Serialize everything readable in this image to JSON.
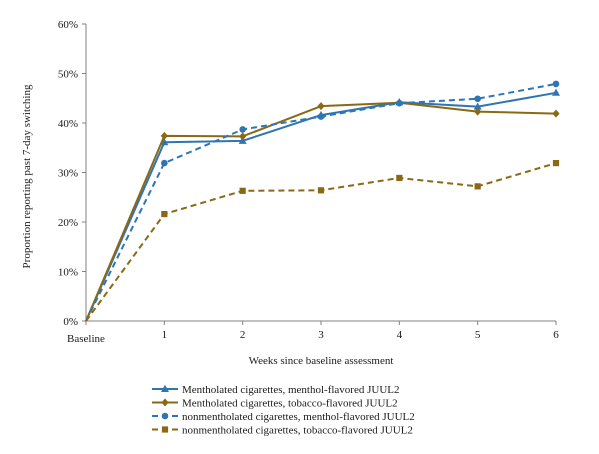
{
  "chart_data": {
    "type": "line",
    "title": "",
    "xlabel": "Weeks since baseline assessment",
    "ylabel": "Proportion reporting past 7-day switching",
    "categories": [
      "Baseline",
      "1",
      "2",
      "3",
      "4",
      "5",
      "6"
    ],
    "ylim": [
      0,
      60
    ],
    "yticks": [
      0,
      10,
      20,
      30,
      40,
      50,
      60
    ],
    "ytick_labels": [
      "0%",
      "10%",
      "20%",
      "30%",
      "40%",
      "50%",
      "60%"
    ],
    "grid": false,
    "legend_position": "bottom",
    "series": [
      {
        "name": "Mentholated cigarettes, menthol-flavored JUUL2",
        "values": [
          0,
          36.1,
          36.4,
          41.6,
          44.2,
          43.3,
          46.1
        ],
        "color": "#2E75B6",
        "dash": "solid",
        "marker": "triangle"
      },
      {
        "name": "Mentholated cigarettes, tobacco-flavored JUUL2",
        "values": [
          0,
          37.4,
          37.3,
          43.4,
          44.1,
          42.3,
          41.9
        ],
        "color": "#8B6914",
        "dash": "solid",
        "marker": "diamond"
      },
      {
        "name": "nonmentholated cigarettes, menthol-flavored JUUL2",
        "values": [
          0,
          31.9,
          38.7,
          41.3,
          44.0,
          44.9,
          47.9
        ],
        "color": "#2E75B6",
        "dash": "dashed",
        "marker": "circle"
      },
      {
        "name": "nonmentholated cigarettes, tobacco-flavored JUUL2",
        "values": [
          0,
          21.6,
          26.3,
          26.4,
          28.9,
          27.2,
          31.9
        ],
        "color": "#8B6914",
        "dash": "dashed",
        "marker": "square"
      }
    ]
  }
}
